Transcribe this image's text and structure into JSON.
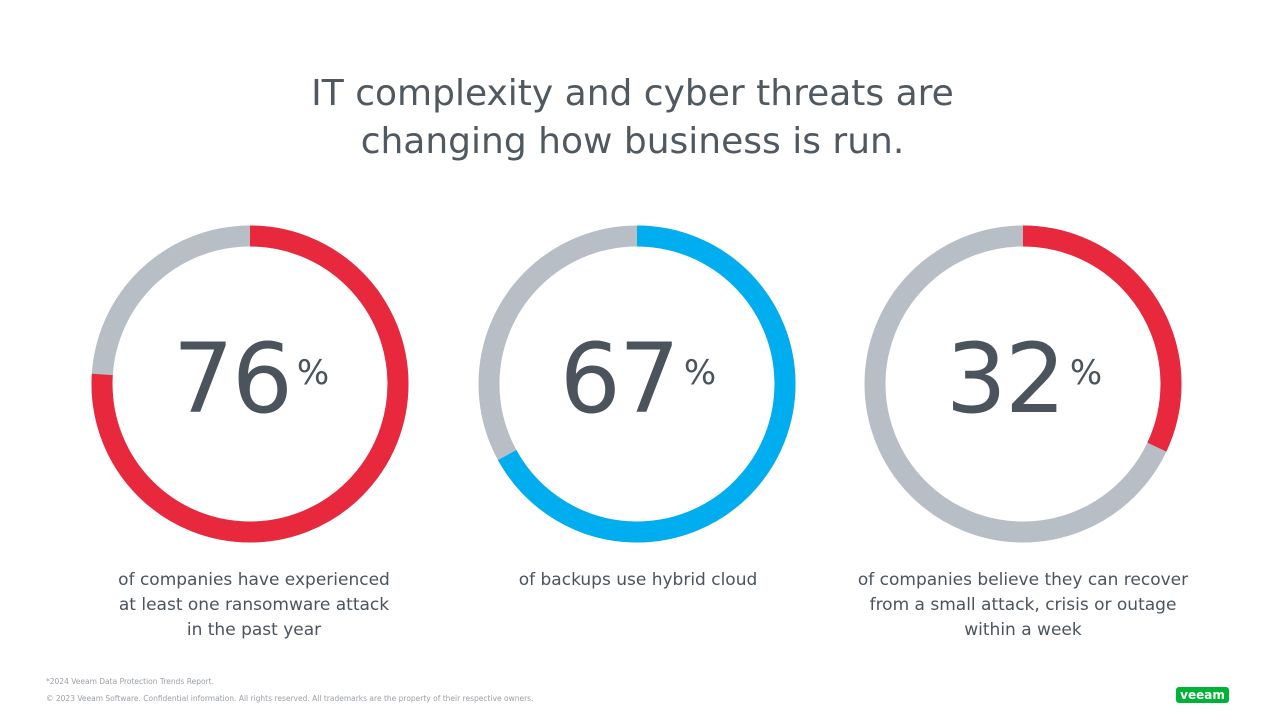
{
  "title_line1": "IT complexity and cyber threats are",
  "title_line2": "changing how business is run.",
  "chart_data": [
    {
      "type": "pie",
      "variant": "donut",
      "value": 76,
      "unit": "%",
      "color": "#e8283c",
      "track_color": "#b8bec6",
      "caption": [
        "of companies have experienced",
        "at least one ransomware attack",
        "in the past  year"
      ]
    },
    {
      "type": "pie",
      "variant": "donut",
      "value": 67,
      "unit": "%",
      "color": "#00aeef",
      "track_color": "#b8bec6",
      "caption": [
        "of backups use hybrid cloud"
      ]
    },
    {
      "type": "pie",
      "variant": "donut",
      "value": 32,
      "unit": "%",
      "color": "#e8283c",
      "track_color": "#b8bec6",
      "caption": [
        "of companies believe they can recover",
        "from a small attack, crisis or outage",
        "within a week"
      ]
    }
  ],
  "footnote": "*2024 Veeam Data Protection Trends Report.",
  "copyright": "© 2023 Veeam Software. Confidential information. All rights reserved. All trademarks are the property of their respective owners.",
  "logo": "veeam"
}
